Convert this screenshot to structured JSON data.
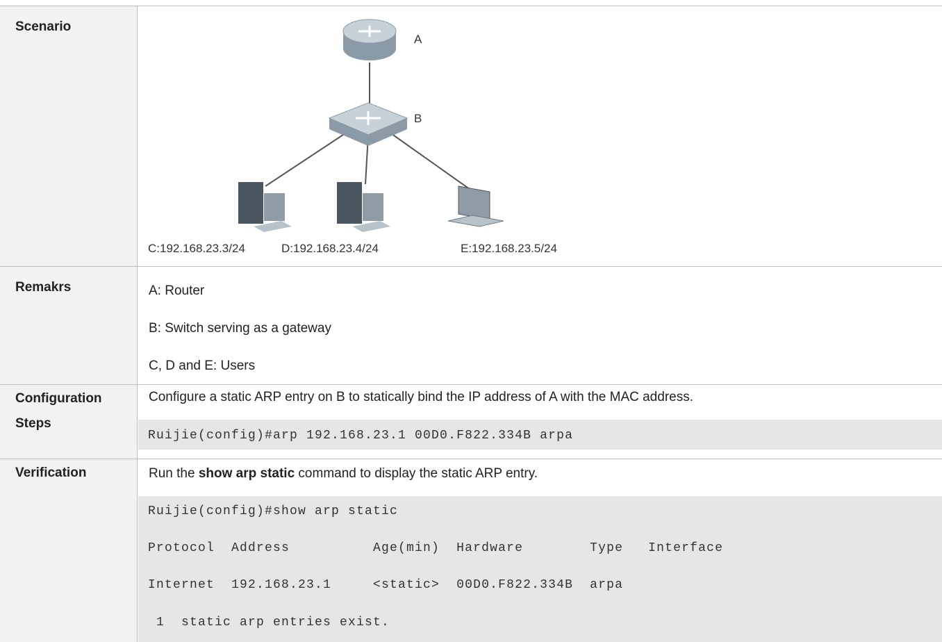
{
  "table": {
    "rows": [
      {
        "header": "Scenario",
        "diagram": {
          "nodes": [
            {
              "label": "A"
            },
            {
              "label": "B"
            },
            {
              "label": "C:192.168.23.3/24"
            },
            {
              "label": "D:192.168.23.4/24"
            },
            {
              "label": "E:192.168.23.5/24"
            }
          ]
        }
      },
      {
        "header": "Remakrs",
        "lines": [
          "A: Router",
          "B: Switch serving as a gateway",
          "C, D and E: Users"
        ]
      },
      {
        "header": "Configuration Steps",
        "text": "Configure a static ARP entry on B to statically bind the IP address of A with the MAC address.",
        "code": [
          "Ruijie(config)#arp 192.168.23.1 00D0.F822.334B arpa"
        ]
      },
      {
        "header": "Verification",
        "text": [
          "Run the ",
          "show arp static",
          " command to display the static ARP entry."
        ],
        "code": [
          "Ruijie(config)#show arp static",
          "Protocol  Address          Age(min)  Hardware        Type   Interface",
          "Internet  192.168.23.1     <static>  00D0.F822.334B  arpa",
          " 1  static arp entries exist."
        ]
      }
    ]
  }
}
